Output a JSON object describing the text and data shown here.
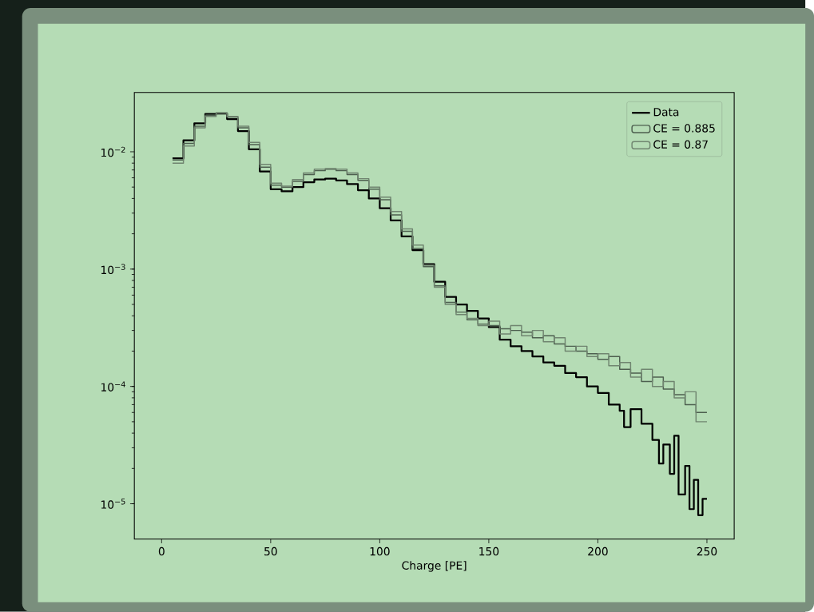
{
  "chart_data": {
    "type": "step",
    "xlabel": "Charge [PE]",
    "log": "y",
    "legend": "top right",
    "xlim": [
      -12.5,
      262.5
    ],
    "ylim": [
      5e-06,
      0.032
    ],
    "xticks": [
      0,
      50,
      100,
      150,
      200,
      250
    ],
    "yticks": [
      {
        "value": 1e-05,
        "label": "10$^{−5}$"
      },
      {
        "value": 0.0001,
        "label": "10$^{−4}$"
      },
      {
        "value": 0.001,
        "label": "10$^{−3}$"
      },
      {
        "value": 0.01,
        "label": "10$^{−2}$"
      }
    ],
    "series": [
      {
        "name": "Data",
        "color": "#000000",
        "x": [
          5,
          10,
          15,
          20,
          25,
          30,
          35,
          40,
          45,
          50,
          55,
          60,
          65,
          70,
          75,
          80,
          85,
          90,
          95,
          100,
          105,
          110,
          115,
          120,
          125,
          130,
          135,
          140,
          145,
          150,
          155,
          160,
          165,
          170,
          175,
          180,
          185,
          190,
          195,
          200,
          205,
          210,
          212,
          215,
          220,
          225,
          228,
          230,
          233,
          235,
          237,
          240,
          242,
          244,
          246,
          248,
          250
        ],
        "values": [
          0.0088,
          0.0125,
          0.0175,
          0.021,
          0.0212,
          0.019,
          0.015,
          0.0105,
          0.0068,
          0.0048,
          0.0046,
          0.005,
          0.0055,
          0.0058,
          0.0059,
          0.0057,
          0.0053,
          0.0047,
          0.004,
          0.0033,
          0.0026,
          0.0019,
          0.00145,
          0.0011,
          0.00078,
          0.00058,
          0.0005,
          0.00044,
          0.00038,
          0.00032,
          0.00025,
          0.00022,
          0.0002,
          0.00018,
          0.00016,
          0.00015,
          0.00013,
          0.00012,
          0.0001,
          8.8e-05,
          7e-05,
          6.2e-05,
          4.5e-05,
          6.4e-05,
          4.8e-05,
          3.5e-05,
          2.2e-05,
          3.2e-05,
          1.8e-05,
          3.8e-05,
          1.2e-05,
          2.1e-05,
          9e-06,
          1.6e-05,
          8e-06,
          1.1e-05,
          1.1e-05
        ]
      },
      {
        "name": "CE = 0.885",
        "color": "#4d5f4f",
        "x": [
          5,
          10,
          15,
          20,
          25,
          30,
          35,
          40,
          45,
          50,
          55,
          60,
          65,
          70,
          75,
          80,
          85,
          90,
          95,
          100,
          105,
          110,
          115,
          120,
          125,
          130,
          135,
          140,
          145,
          150,
          155,
          160,
          165,
          170,
          175,
          180,
          185,
          190,
          195,
          200,
          205,
          210,
          215,
          220,
          225,
          230,
          235,
          240,
          245,
          250
        ],
        "values": [
          0.0085,
          0.0118,
          0.0165,
          0.0205,
          0.0215,
          0.0198,
          0.016,
          0.0115,
          0.0074,
          0.0052,
          0.005,
          0.0056,
          0.0064,
          0.0069,
          0.0071,
          0.0069,
          0.0064,
          0.0057,
          0.0048,
          0.0039,
          0.0029,
          0.0021,
          0.0015,
          0.00105,
          0.00072,
          0.00052,
          0.00043,
          0.00037,
          0.00034,
          0.00033,
          0.00031,
          0.0003,
          0.00029,
          0.00026,
          0.00027,
          0.00023,
          0.00022,
          0.0002,
          0.00019,
          0.00017,
          0.00018,
          0.00014,
          0.00013,
          0.00011,
          0.00012,
          9.5e-05,
          8.5e-05,
          7e-05,
          6e-05,
          6e-05
        ]
      },
      {
        "name": "CE = 0.87",
        "color": "#708570",
        "x": [
          5,
          10,
          15,
          20,
          25,
          30,
          35,
          40,
          45,
          50,
          55,
          60,
          65,
          70,
          75,
          80,
          85,
          90,
          95,
          100,
          105,
          110,
          115,
          120,
          125,
          130,
          135,
          140,
          145,
          150,
          155,
          160,
          165,
          170,
          175,
          180,
          185,
          190,
          195,
          200,
          205,
          210,
          215,
          220,
          225,
          230,
          235,
          240,
          245,
          250
        ],
        "values": [
          0.008,
          0.0112,
          0.016,
          0.02,
          0.0214,
          0.02,
          0.0165,
          0.012,
          0.0078,
          0.0054,
          0.0051,
          0.0058,
          0.0066,
          0.0071,
          0.0072,
          0.0071,
          0.0066,
          0.0059,
          0.005,
          0.0041,
          0.0031,
          0.0022,
          0.0016,
          0.00108,
          0.0007,
          0.0005,
          0.00041,
          0.00038,
          0.00033,
          0.00036,
          0.00028,
          0.00033,
          0.00027,
          0.0003,
          0.00024,
          0.00026,
          0.0002,
          0.00022,
          0.00018,
          0.00019,
          0.00015,
          0.00016,
          0.00012,
          0.00014,
          0.0001,
          0.00011,
          8e-05,
          9e-05,
          5e-05,
          5e-05
        ]
      }
    ]
  }
}
